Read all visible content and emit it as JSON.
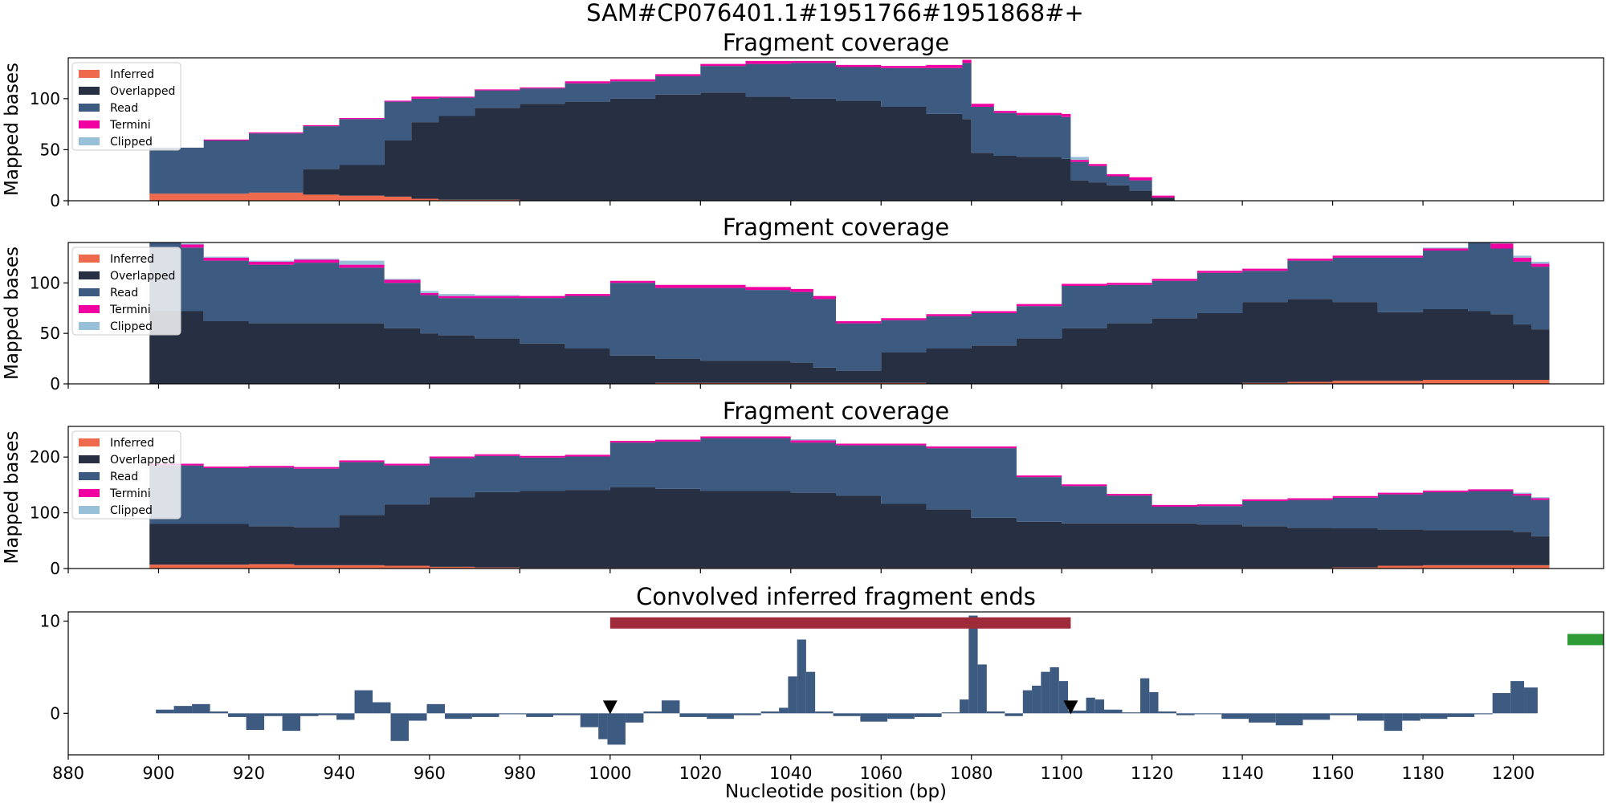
{
  "figure": {
    "suptitle": "SAM#CP076401.1#1951766#1951868#+"
  },
  "chart_data": [
    {
      "type": "area",
      "title": "Fragment coverage",
      "ylabel": "Mapped bases",
      "xlim": [
        880,
        1220
      ],
      "ylim": [
        0,
        140
      ],
      "yticks": [
        0,
        50,
        100
      ],
      "legend_position": "upper-left",
      "x": [
        898,
        910,
        920,
        932,
        940,
        946,
        950,
        956,
        962,
        970,
        980,
        990,
        1000,
        1010,
        1020,
        1030,
        1040,
        1050,
        1060,
        1070,
        1078,
        1080,
        1085,
        1090,
        1100,
        1102,
        1106,
        1110,
        1115,
        1120
      ],
      "series": [
        {
          "name": "Inferred",
          "color": "#ee6a4d",
          "values": [
            7,
            7,
            8,
            6,
            5,
            5,
            4,
            2,
            1,
            1,
            0,
            0,
            0,
            0,
            0,
            0,
            0,
            0,
            0,
            0,
            0,
            0,
            0,
            0,
            0,
            0,
            0,
            0,
            0,
            0
          ]
        },
        {
          "name": "Overlapped",
          "color": "#272f42",
          "values": [
            0,
            0,
            0,
            25,
            30,
            30,
            55,
            75,
            82,
            90,
            95,
            97,
            100,
            104,
            106,
            102,
            100,
            98,
            92,
            85,
            80,
            47,
            44,
            43,
            41,
            20,
            18,
            15,
            10,
            3
          ]
        },
        {
          "name": "Read",
          "color": "#3d5a80",
          "values": [
            45,
            52,
            58,
            42,
            45,
            45,
            38,
            23,
            18,
            17,
            15,
            18,
            17,
            18,
            26,
            32,
            35,
            33,
            38,
            45,
            55,
            45,
            42,
            41,
            41,
            18,
            16,
            9,
            10,
            0
          ]
        },
        {
          "name": "Termini",
          "color": "#f000a0",
          "values": [
            0,
            1,
            1,
            1,
            1,
            1,
            1,
            2,
            1,
            1,
            1,
            2,
            2,
            2,
            2,
            3,
            2,
            2,
            2,
            3,
            3,
            3,
            2,
            2,
            3,
            2,
            2,
            2,
            3,
            2
          ]
        },
        {
          "name": "Clipped",
          "color": "#98c1d9",
          "values": [
            0,
            0,
            0,
            0,
            0,
            0,
            0,
            0,
            0,
            0,
            0,
            0,
            0,
            0,
            0,
            0,
            0,
            0,
            0,
            0,
            0,
            0,
            0,
            0,
            0,
            3,
            0,
            0,
            0,
            0
          ]
        }
      ]
    },
    {
      "type": "area",
      "title": "Fragment coverage",
      "ylabel": "Mapped bases",
      "xlim": [
        880,
        1220
      ],
      "ylim": [
        0,
        140
      ],
      "yticks": [
        0,
        50,
        100
      ],
      "legend_position": "upper-left",
      "x": [
        898,
        905,
        910,
        920,
        930,
        940,
        950,
        958,
        962,
        970,
        980,
        990,
        1000,
        1010,
        1020,
        1030,
        1040,
        1045,
        1050,
        1060,
        1070,
        1080,
        1090,
        1100,
        1110,
        1120,
        1130,
        1140,
        1150,
        1160,
        1170,
        1180,
        1190,
        1195,
        1200,
        1204
      ],
      "series": [
        {
          "name": "Inferred",
          "color": "#ee6a4d",
          "values": [
            0,
            0,
            0,
            0,
            0,
            0,
            0,
            0,
            0,
            0,
            0,
            0,
            0,
            1,
            1,
            1,
            1,
            1,
            1,
            1,
            0,
            0,
            0,
            0,
            0,
            0,
            0,
            1,
            2,
            3,
            3,
            4,
            4,
            4,
            4,
            4
          ]
        },
        {
          "name": "Overlapped",
          "color": "#272f42",
          "values": [
            72,
            72,
            62,
            60,
            60,
            60,
            55,
            50,
            48,
            45,
            40,
            35,
            28,
            24,
            22,
            22,
            20,
            15,
            12,
            30,
            35,
            38,
            45,
            55,
            60,
            65,
            70,
            80,
            82,
            78,
            68,
            70,
            68,
            65,
            55,
            50
          ]
        },
        {
          "name": "Read",
          "color": "#3d5a80",
          "values": [
            68,
            63,
            60,
            58,
            60,
            55,
            45,
            38,
            37,
            40,
            45,
            52,
            72,
            70,
            72,
            70,
            70,
            68,
            47,
            32,
            32,
            32,
            32,
            42,
            38,
            37,
            40,
            31,
            38,
            44,
            54,
            58,
            68,
            65,
            62,
            62
          ]
        },
        {
          "name": "Termini",
          "color": "#f000a0",
          "values": [
            3,
            3,
            3,
            3,
            3,
            3,
            3,
            2,
            2,
            2,
            2,
            2,
            2,
            3,
            3,
            3,
            3,
            3,
            2,
            2,
            2,
            2,
            2,
            2,
            2,
            2,
            2,
            2,
            2,
            2,
            2,
            2,
            3,
            5,
            4,
            3
          ]
        },
        {
          "name": "Clipped",
          "color": "#98c1d9",
          "values": [
            0,
            1,
            1,
            1,
            1,
            4,
            1,
            2,
            2,
            1,
            0,
            0,
            0,
            0,
            0,
            0,
            0,
            0,
            0,
            0,
            0,
            0,
            0,
            0,
            0,
            0,
            0,
            0,
            0,
            0,
            0,
            1,
            1,
            1,
            2,
            2
          ]
        }
      ]
    },
    {
      "type": "area",
      "title": "Fragment coverage",
      "ylabel": "Mapped bases",
      "xlim": [
        880,
        1220
      ],
      "ylim": [
        0,
        255
      ],
      "yticks": [
        0,
        100,
        200
      ],
      "legend_position": "upper-left",
      "x": [
        898,
        910,
        920,
        930,
        940,
        950,
        960,
        970,
        980,
        990,
        1000,
        1010,
        1020,
        1030,
        1040,
        1050,
        1060,
        1070,
        1080,
        1090,
        1100,
        1110,
        1120,
        1130,
        1140,
        1150,
        1160,
        1170,
        1180,
        1190,
        1200,
        1204
      ],
      "series": [
        {
          "name": "Inferred",
          "color": "#ee6a4d",
          "values": [
            7,
            7,
            8,
            6,
            6,
            5,
            3,
            2,
            1,
            1,
            1,
            1,
            1,
            1,
            1,
            1,
            1,
            1,
            1,
            1,
            1,
            1,
            1,
            1,
            1,
            1,
            2,
            5,
            6,
            6,
            6,
            6
          ]
        },
        {
          "name": "Overlapped",
          "color": "#272f42",
          "values": [
            73,
            73,
            68,
            68,
            90,
            110,
            125,
            135,
            138,
            140,
            145,
            142,
            138,
            138,
            135,
            130,
            115,
            105,
            90,
            83,
            80,
            80,
            80,
            78,
            75,
            72,
            70,
            65,
            63,
            63,
            60,
            52
          ]
        },
        {
          "name": "Read",
          "color": "#3d5a80",
          "values": [
            105,
            100,
            105,
            105,
            95,
            70,
            70,
            65,
            60,
            60,
            80,
            85,
            95,
            95,
            90,
            90,
            105,
            110,
            125,
            80,
            67,
            50,
            30,
            33,
            45,
            50,
            55,
            63,
            68,
            70,
            65,
            65
          ]
        },
        {
          "name": "Termini",
          "color": "#f000a0",
          "values": [
            3,
            3,
            3,
            3,
            3,
            3,
            3,
            3,
            3,
            3,
            3,
            3,
            3,
            3,
            4,
            3,
            3,
            3,
            3,
            3,
            3,
            3,
            3,
            3,
            3,
            3,
            3,
            3,
            3,
            3,
            3,
            3
          ]
        },
        {
          "name": "Clipped",
          "color": "#98c1d9",
          "values": [
            0,
            0,
            0,
            0,
            0,
            0,
            0,
            0,
            0,
            0,
            0,
            0,
            0,
            0,
            2,
            0,
            0,
            0,
            0,
            0,
            0,
            0,
            0,
            0,
            0,
            0,
            0,
            0,
            0,
            0,
            2,
            2
          ]
        }
      ]
    },
    {
      "type": "bar",
      "title": "Convolved inferred fragment ends",
      "xlabel": "Nucleotide position (bp)",
      "xlim": [
        880,
        1220
      ],
      "ylim": [
        -4.5,
        11
      ],
      "yticks": [
        0,
        10
      ],
      "xticks": [
        880,
        900,
        920,
        940,
        960,
        980,
        1000,
        1020,
        1040,
        1060,
        1080,
        1100,
        1120,
        1140,
        1160,
        1180,
        1200
      ],
      "bar_color": "#3d5a80",
      "x": [
        900,
        904,
        908,
        912,
        916,
        920,
        924,
        928,
        932,
        936,
        940,
        944,
        948,
        952,
        956,
        960,
        964,
        970,
        976,
        982,
        988,
        994,
        998,
        1000,
        1004,
        1008,
        1012,
        1016,
        1022,
        1028,
        1034,
        1038,
        1040,
        1042,
        1044,
        1046,
        1050,
        1056,
        1062,
        1068,
        1074,
        1078,
        1080,
        1082,
        1084,
        1088,
        1092,
        1094,
        1096,
        1098,
        1100,
        1102,
        1106,
        1108,
        1110,
        1114,
        1118,
        1120,
        1122,
        1126,
        1130,
        1136,
        1142,
        1148,
        1154,
        1160,
        1166,
        1172,
        1176,
        1180,
        1186,
        1192,
        1196,
        1200,
        1203
      ],
      "values": [
        0.4,
        0.8,
        1.0,
        0.2,
        -0.4,
        -1.8,
        -0.3,
        -1.9,
        -0.3,
        -0.2,
        -0.7,
        2.5,
        1.2,
        -3.0,
        -0.8,
        1.0,
        -0.6,
        -0.4,
        -0.1,
        -0.4,
        -0.2,
        -1.5,
        -2.8,
        -3.4,
        -1.0,
        0.2,
        1.4,
        -0.4,
        -0.6,
        -0.2,
        0.2,
        0.6,
        4.0,
        8.0,
        4.5,
        0.2,
        -0.3,
        -0.9,
        -0.6,
        -0.4,
        0.1,
        1.5,
        10.6,
        5.3,
        0.2,
        -0.3,
        2.5,
        3.0,
        4.5,
        5.0,
        3.5,
        0.3,
        1.7,
        1.5,
        0.4,
        0.1,
        3.8,
        2.3,
        0.2,
        -0.2,
        -0.1,
        -0.6,
        -1.0,
        -1.3,
        -0.7,
        -0.2,
        -0.8,
        -1.9,
        -0.8,
        -0.6,
        -0.4,
        -0.1,
        2.2,
        3.5,
        2.8
      ],
      "annotations": {
        "red_bar": {
          "x_start": 1000,
          "x_end": 1102,
          "y": 9.8,
          "color": "#9e2a3a"
        },
        "markers": [
          {
            "x": 1000,
            "y": 0.6,
            "shape": "triangle-down"
          },
          {
            "x": 1102,
            "y": 0.6,
            "shape": "triangle-down"
          }
        ],
        "green_bar": {
          "x_start": 1212,
          "x_end": 1220,
          "y": 8,
          "color": "#2e9a35"
        }
      }
    }
  ]
}
